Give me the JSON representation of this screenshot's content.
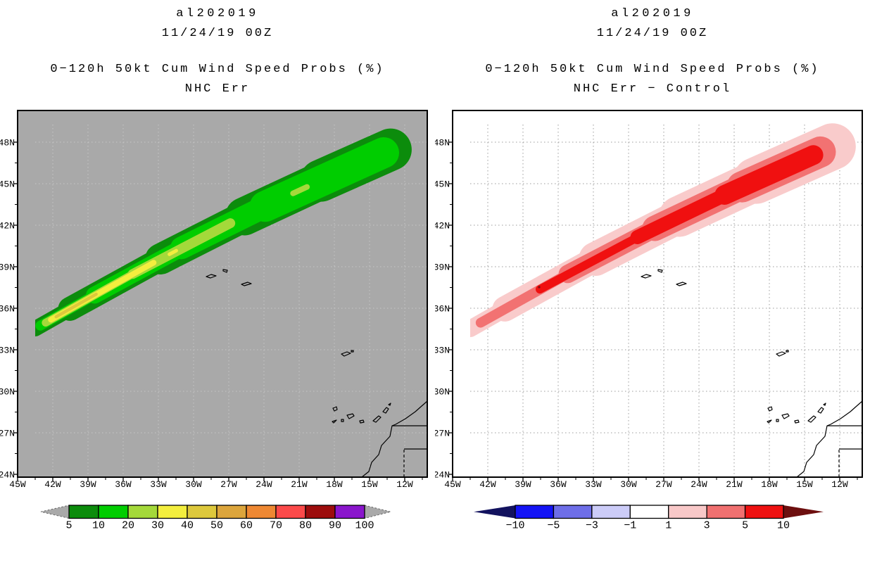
{
  "panels": [
    {
      "title_storm": "al202019",
      "title_datetime": "11/24/19 00Z",
      "title_product": "0−120h 50kt Cum Wind Speed Probs (%)",
      "title_subtitle": "NHC Err",
      "map_bg": "#a9a9a9",
      "grid_color": "#c7c7c7"
    },
    {
      "title_storm": "al202019",
      "title_datetime": "11/24/19 00Z",
      "title_product": "0−120h 50kt Cum Wind Speed Probs (%)",
      "title_subtitle": "NHC Err − Control",
      "map_bg": "#ffffff",
      "grid_color": "#9b9b9b"
    }
  ],
  "axes": {
    "lat_labels": [
      "48N",
      "45N",
      "42N",
      "39N",
      "36N",
      "33N",
      "30N",
      "27N",
      "24N"
    ],
    "lon_labels": [
      "45W",
      "42W",
      "39W",
      "36W",
      "33W",
      "30W",
      "27W",
      "24W",
      "21W",
      "18W",
      "15W",
      "12W"
    ]
  },
  "colorbars": [
    {
      "tick_labels": [
        "5",
        "10",
        "20",
        "30",
        "40",
        "50",
        "60",
        "70",
        "80",
        "90",
        "100"
      ],
      "segment_colors": [
        "#0c8c0c",
        "#00cd00",
        "#a4d93a",
        "#f3ee3e",
        "#ddc83c",
        "#dca53c",
        "#ee8833",
        "#fb4a4a",
        "#9d0d0d",
        "#8a16cc"
      ],
      "arrow_low_color": "#a9a9a9",
      "arrow_high_color": "#a9a9a9",
      "arrow_outline": "dashed"
    },
    {
      "tick_labels": [
        "−10",
        "−5",
        "−3",
        "−1",
        "1",
        "3",
        "5",
        "10"
      ],
      "segment_colors": [
        "#1414f5",
        "#6e6ee8",
        "#ccccf8",
        "#ffffff",
        "#f8c8c8",
        "#f07070",
        "#ee1111"
      ],
      "arrow_low_color": "#12125e",
      "arrow_high_color": "#6d0f0f",
      "arrow_outline": "none"
    }
  ],
  "swath_colors": {
    "left": [
      "#0c8c0c",
      "#00cd00",
      "#a4d93a",
      "#f3ee3e",
      "#ddc83c"
    ],
    "right": [
      "#f9cbcb",
      "#f27272",
      "#f01010"
    ],
    "right_speck": "#7c0e0e"
  },
  "geo": {
    "outline_color": "#000000",
    "features": [
      "azores-islands",
      "madeira-islands",
      "canary-islands",
      "africa-coastline",
      "country-borders"
    ]
  },
  "chart_data": [
    {
      "type": "heatmap",
      "panel": "left",
      "title": "al202019 11/24/19 00Z",
      "subtitle": "0−120h 50kt Cum Wind Speed Probs (%) — NHC Err",
      "xlabel": "longitude",
      "ylabel": "latitude",
      "x_ticks": [
        "45W",
        "42W",
        "39W",
        "36W",
        "33W",
        "30W",
        "27W",
        "24W",
        "21W",
        "18W",
        "15W",
        "12W"
      ],
      "y_ticks": [
        "24N",
        "27N",
        "30N",
        "33N",
        "36N",
        "39N",
        "42N",
        "45N",
        "48N"
      ],
      "xlim": [
        "45W",
        "10W"
      ],
      "ylim": [
        "24N",
        "50N"
      ],
      "grid": true,
      "legend_position": "bottom colorbar with out-of-range arrows",
      "levels_percent": [
        5,
        10,
        20,
        30,
        40,
        50,
        60,
        70,
        80,
        90,
        100
      ],
      "level_colors": [
        "#0c8c0c",
        "#00cd00",
        "#a4d93a",
        "#f3ee3e",
        "#ddc83c",
        "#dca53c",
        "#ee8833",
        "#fb4a4a",
        "#9d0d0d",
        "#8a16cc"
      ],
      "swath": {
        "shape": "elongated SW-to-NE cigar-shaped probability swath",
        "centerline_lonlat": [
          [
            -43.5,
            34.5
          ],
          [
            -36.0,
            39.0
          ],
          [
            -28.5,
            42.7
          ],
          [
            -21.0,
            45.3
          ],
          [
            -13.8,
            47.3
          ]
        ],
        "max_level_reached_percent": 40,
        "max_region_lonlat": [
          -41.5,
          36.0
        ],
        "level_extents": {
          "5": "full swath, ~43.5W 34.5N to ~13W 48.5N, widens toward NE end",
          "10": "nearly full length, inset within 5% band",
          "20": "SW half stripe plus small patch near 21W 46N",
          "30": "SW third, tip to ~33W, plus tiny sliver near 33W 39N",
          "40": "small core near 42W-39W, 35N-37N"
        }
      },
      "background": "0% probability shown as gray"
    },
    {
      "type": "heatmap",
      "panel": "right",
      "title": "al202019 11/24/19 00Z",
      "subtitle": "0−120h 50kt Cum Wind Speed Probs (%) — NHC Err − Control",
      "xlabel": "longitude",
      "ylabel": "latitude",
      "x_ticks": [
        "45W",
        "42W",
        "39W",
        "36W",
        "33W",
        "30W",
        "27W",
        "24W",
        "21W",
        "18W",
        "15W",
        "12W"
      ],
      "y_ticks": [
        "24N",
        "27N",
        "30N",
        "33N",
        "36N",
        "39N",
        "42N",
        "45N",
        "48N"
      ],
      "xlim": [
        "45W",
        "10W"
      ],
      "ylim": [
        "24N",
        "50N"
      ],
      "grid": true,
      "legend_position": "bottom colorbar with out-of-range arrows",
      "levels_difference": [
        -10,
        -5,
        -3,
        -1,
        1,
        3,
        5,
        10
      ],
      "level_colors": [
        "#1414f5",
        "#6e6ee8",
        "#ccccf8",
        "#ffffff",
        "#f8c8c8",
        "#f07070",
        "#ee1111"
      ],
      "swath": {
        "shape": "same SW-to-NE swath; all differences positive (red/pink only, no blue)",
        "centerline_lonlat": [
          [
            -43.5,
            34.5
          ],
          [
            -36.0,
            39.0
          ],
          [
            -28.5,
            42.7
          ],
          [
            -21.0,
            45.3
          ],
          [
            -13.8,
            47.3
          ]
        ],
        "bands": {
          "+1 to +3": "outer pink envelope, full swath length",
          "+3 to +5": "middle salmon band",
          "+5 to +10": "bright red core along most of swath from ~39W 37N to NE end"
        },
        "note": "tiny >10 speck near 39W 37.5N; background difference 0 shown as white"
      },
      "background": "0 difference shown as white"
    }
  ]
}
